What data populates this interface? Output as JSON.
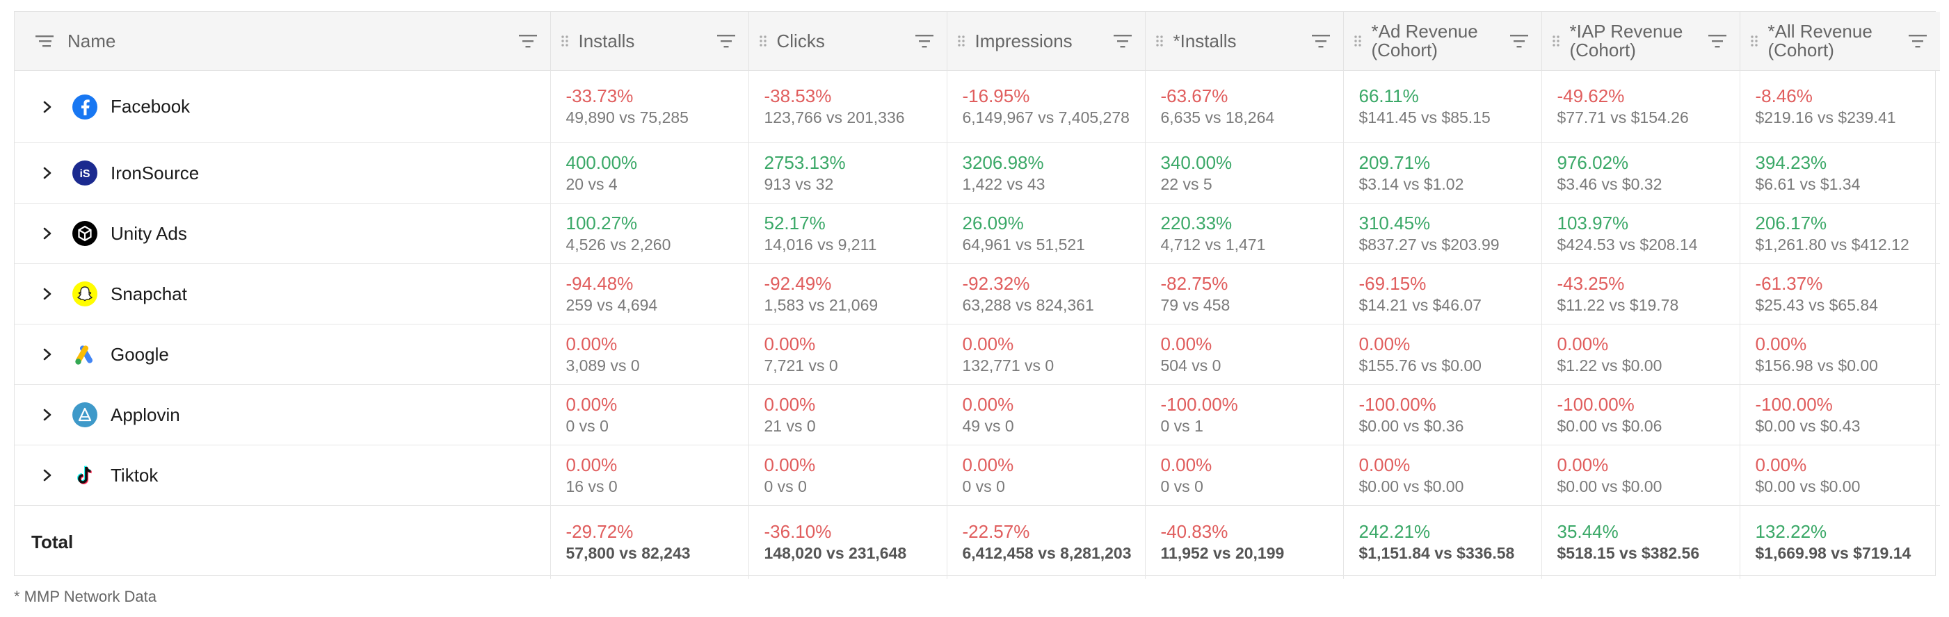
{
  "columns": {
    "name": "Name",
    "metrics": [
      "Installs",
      "Clicks",
      "Impressions",
      "*Installs",
      "*Ad Revenue (Cohort)",
      "*IAP Revenue (Cohort)",
      "*All Revenue (Cohort)"
    ]
  },
  "rows": [
    {
      "name": "Facebook",
      "icon": "facebook-icon",
      "cells": [
        {
          "pct": "-33.73%",
          "cmp": "49,890 vs 75,285"
        },
        {
          "pct": "-38.53%",
          "cmp": "123,766 vs 201,336"
        },
        {
          "pct": "-16.95%",
          "cmp": "6,149,967 vs 7,405,278"
        },
        {
          "pct": "-63.67%",
          "cmp": "6,635 vs 18,264"
        },
        {
          "pct": "66.11%",
          "cmp": "$141.45 vs $85.15"
        },
        {
          "pct": "-49.62%",
          "cmp": "$77.71 vs $154.26"
        },
        {
          "pct": "-8.46%",
          "cmp": "$219.16 vs $239.41"
        }
      ]
    },
    {
      "name": "IronSource",
      "icon": "ironsource-icon",
      "cells": [
        {
          "pct": "400.00%",
          "cmp": "20 vs 4"
        },
        {
          "pct": "2753.13%",
          "cmp": "913 vs 32"
        },
        {
          "pct": "3206.98%",
          "cmp": "1,422 vs 43"
        },
        {
          "pct": "340.00%",
          "cmp": "22 vs 5"
        },
        {
          "pct": "209.71%",
          "cmp": "$3.14 vs $1.02"
        },
        {
          "pct": "976.02%",
          "cmp": "$3.46 vs $0.32"
        },
        {
          "pct": "394.23%",
          "cmp": "$6.61 vs $1.34"
        }
      ]
    },
    {
      "name": "Unity Ads",
      "icon": "unity-icon",
      "cells": [
        {
          "pct": "100.27%",
          "cmp": "4,526 vs 2,260"
        },
        {
          "pct": "52.17%",
          "cmp": "14,016 vs 9,211"
        },
        {
          "pct": "26.09%",
          "cmp": "64,961 vs 51,521"
        },
        {
          "pct": "220.33%",
          "cmp": "4,712 vs 1,471"
        },
        {
          "pct": "310.45%",
          "cmp": "$837.27 vs $203.99"
        },
        {
          "pct": "103.97%",
          "cmp": "$424.53 vs $208.14"
        },
        {
          "pct": "206.17%",
          "cmp": "$1,261.80 vs $412.12"
        }
      ]
    },
    {
      "name": "Snapchat",
      "icon": "snapchat-icon",
      "cells": [
        {
          "pct": "-94.48%",
          "cmp": "259 vs 4,694"
        },
        {
          "pct": "-92.49%",
          "cmp": "1,583 vs 21,069"
        },
        {
          "pct": "-92.32%",
          "cmp": "63,288 vs 824,361"
        },
        {
          "pct": "-82.75%",
          "cmp": "79 vs 458"
        },
        {
          "pct": "-69.15%",
          "cmp": "$14.21 vs $46.07"
        },
        {
          "pct": "-43.25%",
          "cmp": "$11.22 vs $19.78"
        },
        {
          "pct": "-61.37%",
          "cmp": "$25.43 vs $65.84"
        }
      ]
    },
    {
      "name": "Google",
      "icon": "google-ads-icon",
      "cells": [
        {
          "pct": "0.00%",
          "cmp": "3,089 vs 0"
        },
        {
          "pct": "0.00%",
          "cmp": "7,721 vs 0"
        },
        {
          "pct": "0.00%",
          "cmp": "132,771 vs 0"
        },
        {
          "pct": "0.00%",
          "cmp": "504 vs 0"
        },
        {
          "pct": "0.00%",
          "cmp": "$155.76 vs $0.00"
        },
        {
          "pct": "0.00%",
          "cmp": "$1.22 vs $0.00"
        },
        {
          "pct": "0.00%",
          "cmp": "$156.98 vs $0.00"
        }
      ]
    },
    {
      "name": "Applovin",
      "icon": "applovin-icon",
      "cells": [
        {
          "pct": "0.00%",
          "cmp": "0 vs 0"
        },
        {
          "pct": "0.00%",
          "cmp": "21 vs 0"
        },
        {
          "pct": "0.00%",
          "cmp": "49 vs 0"
        },
        {
          "pct": "-100.00%",
          "cmp": "0 vs 1"
        },
        {
          "pct": "-100.00%",
          "cmp": "$0.00 vs $0.36"
        },
        {
          "pct": "-100.00%",
          "cmp": "$0.00 vs $0.06"
        },
        {
          "pct": "-100.00%",
          "cmp": "$0.00 vs $0.43"
        }
      ]
    },
    {
      "name": "Tiktok",
      "icon": "tiktok-icon",
      "cells": [
        {
          "pct": "0.00%",
          "cmp": "16 vs 0"
        },
        {
          "pct": "0.00%",
          "cmp": "0 vs 0"
        },
        {
          "pct": "0.00%",
          "cmp": "0 vs 0"
        },
        {
          "pct": "0.00%",
          "cmp": "0 vs 0"
        },
        {
          "pct": "0.00%",
          "cmp": "$0.00 vs $0.00"
        },
        {
          "pct": "0.00%",
          "cmp": "$0.00 vs $0.00"
        },
        {
          "pct": "0.00%",
          "cmp": "$0.00 vs $0.00"
        }
      ]
    }
  ],
  "total": {
    "label": "Total",
    "cells": [
      {
        "pct": "-29.72%",
        "cmp": "57,800 vs 82,243"
      },
      {
        "pct": "-36.10%",
        "cmp": "148,020 vs 231,648"
      },
      {
        "pct": "-22.57%",
        "cmp": "6,412,458 vs 8,281,203"
      },
      {
        "pct": "-40.83%",
        "cmp": "11,952 vs 20,199"
      },
      {
        "pct": "242.21%",
        "cmp": "$1,151.84 vs $336.58"
      },
      {
        "pct": "35.44%",
        "cmp": "$518.15 vs $382.56"
      },
      {
        "pct": "132.22%",
        "cmp": "$1,669.98 vs $719.14"
      }
    ]
  },
  "footnote": "* MMP Network Data",
  "colors": {
    "negative": "#e05d5d",
    "positive": "#3aa867"
  }
}
